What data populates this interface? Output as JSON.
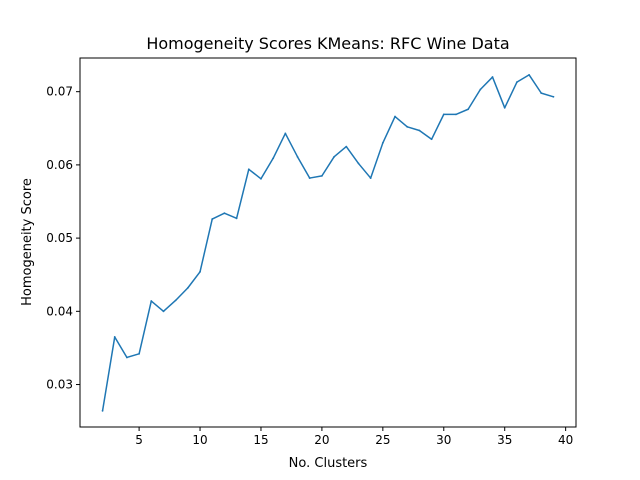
{
  "chart_data": {
    "type": "line",
    "title": "Homogeneity Scores KMeans: RFC Wine Data",
    "xlabel": "No. Clusters",
    "ylabel": "Homogeneity Score",
    "xlim": [
      0.15,
      40.85
    ],
    "ylim": [
      0.0242,
      0.0746
    ],
    "xticks": [
      5,
      10,
      15,
      20,
      25,
      30,
      35,
      40
    ],
    "xtick_labels": [
      "5",
      "10",
      "15",
      "20",
      "25",
      "30",
      "35",
      "40"
    ],
    "yticks": [
      0.03,
      0.04,
      0.05,
      0.06,
      0.07
    ],
    "ytick_labels": [
      "0.03",
      "0.04",
      "0.05",
      "0.06",
      "0.07"
    ],
    "grid": false,
    "series": [
      {
        "color": "#1f77b4",
        "x": [
          2,
          3,
          4,
          5,
          6,
          7,
          8,
          9,
          10,
          11,
          12,
          13,
          14,
          15,
          16,
          17,
          18,
          19,
          20,
          21,
          22,
          23,
          24,
          25,
          26,
          27,
          28,
          29,
          30,
          31,
          32,
          33,
          34,
          35,
          36,
          37,
          38,
          39
        ],
        "values": [
          0.0264,
          0.0365,
          0.0337,
          0.0342,
          0.0414,
          0.04,
          0.0415,
          0.0432,
          0.0454,
          0.0526,
          0.0534,
          0.0527,
          0.0594,
          0.0581,
          0.0609,
          0.0643,
          0.0611,
          0.0582,
          0.0585,
          0.0611,
          0.0625,
          0.0602,
          0.0582,
          0.063,
          0.0666,
          0.0652,
          0.0647,
          0.0635,
          0.0669,
          0.0669,
          0.0676,
          0.0703,
          0.072,
          0.0678,
          0.0713,
          0.0723,
          0.0698,
          0.0693
        ]
      }
    ]
  }
}
